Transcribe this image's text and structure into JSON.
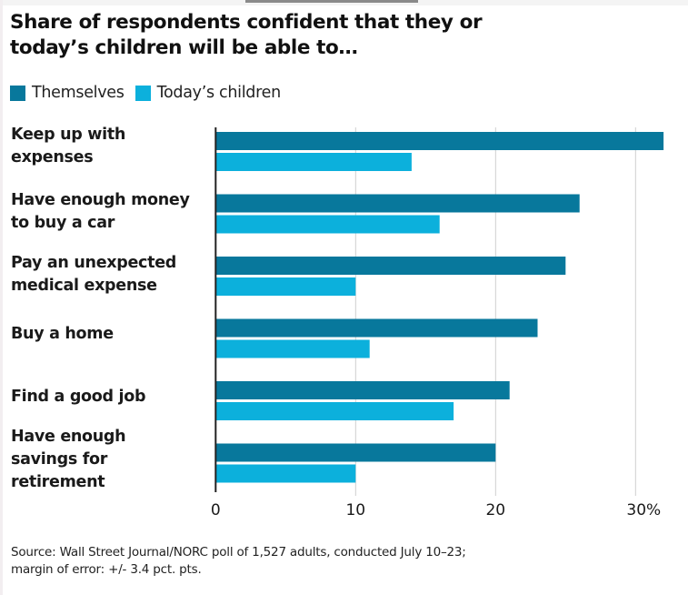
{
  "chart_data": {
    "type": "bar",
    "orientation": "horizontal",
    "title": "Share of respondents confident that they or today’s children will be able to…",
    "categories": [
      "Keep up with expenses",
      "Have enough money to buy a car",
      "Pay an unexpected medical expense",
      "Buy a home",
      "Find a good job",
      "Have enough savings for retirement"
    ],
    "category_label_lines": [
      [
        "Keep up with",
        "expenses"
      ],
      [
        "Have enough money",
        "to buy a car"
      ],
      [
        "Pay an unexpected",
        "medical expense"
      ],
      [
        "Buy a home"
      ],
      [
        "Find a good job"
      ],
      [
        "Have enough",
        "savings for",
        "retirement"
      ]
    ],
    "series": [
      {
        "name": "Themselves",
        "color": "#08789c",
        "values": [
          32,
          26,
          25,
          23,
          21,
          20
        ]
      },
      {
        "name": "Today’s children",
        "color": "#0cb0dc",
        "values": [
          14,
          16,
          10,
          11,
          17,
          10
        ]
      }
    ],
    "xlim": [
      0,
      32
    ],
    "xticks": [
      0,
      10,
      20,
      30
    ],
    "xtick_labels": [
      "0",
      "10",
      "20",
      "30%"
    ],
    "xlabel": "",
    "ylabel": "",
    "grid": "vertical",
    "legend_position": "top-left",
    "unit": "%"
  },
  "legend": {
    "items": [
      {
        "label": "Themselves",
        "color": "#08789c"
      },
      {
        "label": "Today’s children",
        "color": "#0cb0dc"
      }
    ]
  },
  "source": {
    "line1": "Source: Wall Street Journal/NORC poll of 1,527 adults, conducted July 10–23;",
    "line2": "margin of error: +/- 3.4 pct. pts."
  },
  "colors": {
    "axis": "#222222",
    "grid": "#cfcfcf"
  }
}
